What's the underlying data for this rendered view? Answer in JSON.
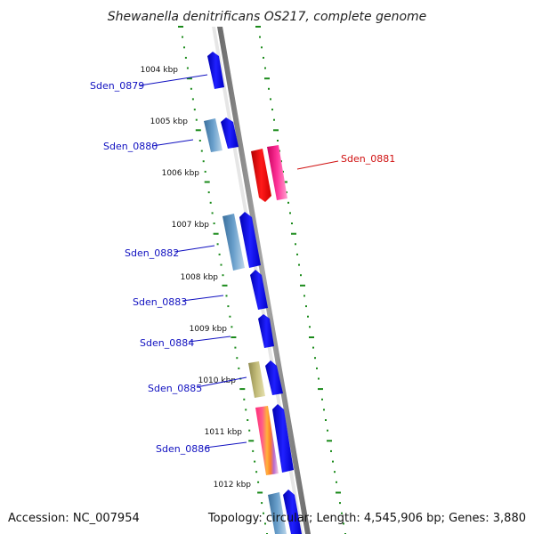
{
  "title": "Shewanella denitrificans OS217, complete genome",
  "accession": "Accession: NC_007954",
  "summary": "Topology: circular; Length: 4,545,906 bp; Genes: 3,880",
  "colors": {
    "backbone": "#8c8c8c",
    "tick": "#1a8a1a",
    "label_blue": "#1010c0",
    "label_red": "#d01010"
  },
  "kbp_marks": [
    "1004 kbp",
    "1005 kbp",
    "1006 kbp",
    "1007 kbp",
    "1008 kbp",
    "1009 kbp",
    "1010 kbp",
    "1011 kbp",
    "1012 kbp"
  ],
  "genes": [
    {
      "label": "Sden_0879",
      "color": "label_blue"
    },
    {
      "label": "Sden_0880",
      "color": "label_blue"
    },
    {
      "label": "Sden_0881",
      "color": "label_red"
    },
    {
      "label": "Sden_0882",
      "color": "label_blue"
    },
    {
      "label": "Sden_0883",
      "color": "label_blue"
    },
    {
      "label": "Sden_0884",
      "color": "label_blue"
    },
    {
      "label": "Sden_0885",
      "color": "label_blue"
    },
    {
      "label": "Sden_0886",
      "color": "label_blue"
    }
  ]
}
